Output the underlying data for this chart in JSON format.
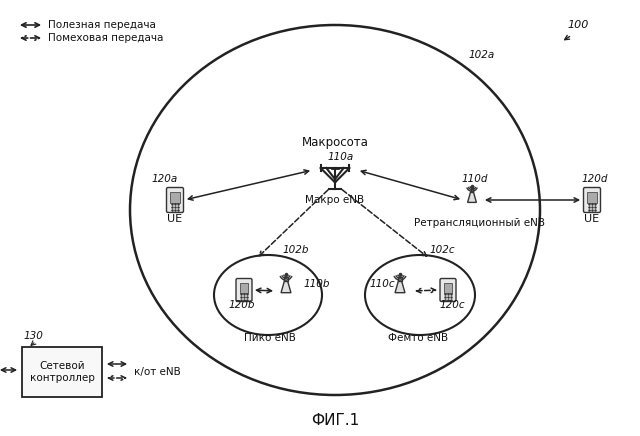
{
  "title": "ФИГ.1",
  "figure_number": "100",
  "bg_color": "#ffffff",
  "macro_cell_label": "Макросота",
  "macro_enb_label": "Макро eNB",
  "macro_enb_id": "110a",
  "relay_enb_id": "110d",
  "relay_enb_label": "Ретрансляционный eNB",
  "pico_cell_id": "102b",
  "pico_enb_id": "110b",
  "pico_enb_label": "Пико eNB",
  "femto_cell_id": "102c",
  "femto_enb_id": "110c",
  "femto_enb_label": "Фемто eNB",
  "ue_left_id": "120a",
  "ue_right_id": "120d",
  "ue_label": "UE",
  "pico_ue_id": "120b",
  "femto_ue_id": "120c",
  "macro_cell_outline": "102a",
  "network_ctrl_id": "130",
  "network_ctrl_label": "Сетевой\nконтроллер",
  "enb_arrow_label": "к/от eNB",
  "legend_solid": "Полезная передача",
  "legend_dashed": "Помеховая передача",
  "line_color": "#222222",
  "text_color": "#111111"
}
